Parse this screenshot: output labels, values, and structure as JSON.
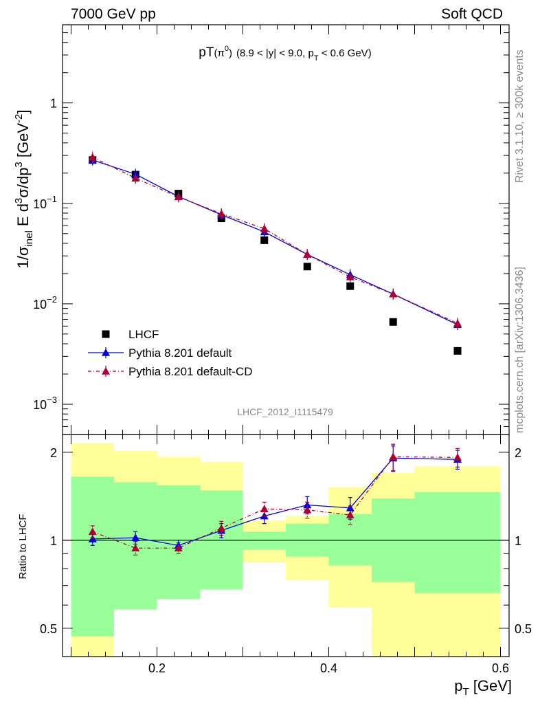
{
  "header": {
    "left": "7000 GeV pp",
    "right": "Soft QCD"
  },
  "side_labels": {
    "rivet": "Rivet 3.1.10, ≥ 300k events",
    "site": "mcplots.cern.ch [arXiv:1306.3436]"
  },
  "chart_data": [
    {
      "type": "scatter",
      "title_main": "pT",
      "title_sup": "(π",
      "title_sup0": "0",
      "title_sup_close": ")",
      "title_range_a": "(8.9 < |y| < 9.0, p",
      "title_range_sub": "T",
      "title_range_b": " < 0.6 GeV)",
      "ylabel": "1/σinel E d3σ/dp3 [GeV-2]",
      "ylabel_parts": {
        "a": "1/σ",
        "sub": "inel",
        "b": " E d",
        "sup3": "3",
        "c": "σ/dp",
        "sup3b": "3",
        "d": " [GeV",
        "sup": "-2",
        "e": "]"
      },
      "y_scale": "log",
      "ylim": [
        0.0005,
        6.0
      ],
      "xlim": [
        0.09,
        0.61
      ],
      "y_ticks": [
        {
          "value": 1,
          "label": "1",
          "exp": ""
        },
        {
          "value": 0.1,
          "label": "10",
          "exp": "−1"
        },
        {
          "value": 0.01,
          "label": "10",
          "exp": "−2"
        },
        {
          "value": 0.001,
          "label": "10",
          "exp": "−3"
        }
      ],
      "watermark": "LHCF_2012_I1115479",
      "legend_position": "bottom-left",
      "series": [
        {
          "name": "LHCF",
          "color": "#000000",
          "marker": "square",
          "x": [
            0.125,
            0.175,
            0.225,
            0.275,
            0.325,
            0.375,
            0.425,
            0.475,
            0.55
          ],
          "y": [
            0.27,
            0.193,
            0.125,
            0.071,
            0.043,
            0.0235,
            0.015,
            0.0066,
            0.0034
          ]
        },
        {
          "name": "Pythia 8.201 default",
          "color": "#0000dd",
          "marker": "triangle",
          "line": "solid",
          "x": [
            0.125,
            0.175,
            0.225,
            0.275,
            0.325,
            0.375,
            0.425,
            0.475,
            0.55
          ],
          "y": [
            0.27,
            0.195,
            0.117,
            0.077,
            0.052,
            0.031,
            0.0195,
            0.0125,
            0.0062
          ]
        },
        {
          "name": "Pythia 8.201 default-CD",
          "color": "#b00033",
          "marker": "triangle",
          "line": "dashdot",
          "x": [
            0.125,
            0.175,
            0.225,
            0.275,
            0.325,
            0.375,
            0.425,
            0.475,
            0.55
          ],
          "y": [
            0.288,
            0.178,
            0.116,
            0.079,
            0.056,
            0.031,
            0.0185,
            0.0125,
            0.0064
          ]
        }
      ]
    },
    {
      "type": "scatter",
      "ylabel": "Ratio to LHCF",
      "xlabel_main": "p",
      "xlabel_sub": "T",
      "xlabel_unit": " [GeV]",
      "y_scale": "log",
      "ylim": [
        0.4,
        2.3
      ],
      "xlim": [
        0.09,
        0.61
      ],
      "x_ticks": [
        {
          "value": 0.2,
          "label": "0.2"
        },
        {
          "value": 0.4,
          "label": "0.4"
        },
        {
          "value": 0.6,
          "label": "0.6"
        }
      ],
      "y_ticks": [
        {
          "value": 2,
          "label": "2"
        },
        {
          "value": 1,
          "label": "1"
        },
        {
          "value": 0.5,
          "label": "0.5"
        }
      ],
      "reference_line": 1,
      "bands": [
        {
          "x0": 0.1,
          "x1": 0.15,
          "yellow": [
            0.4,
            2.15
          ],
          "green": [
            0.47,
            1.65
          ]
        },
        {
          "x0": 0.15,
          "x1": 0.2,
          "yellow": [
            0.58,
            2.02
          ],
          "green": [
            0.58,
            1.58
          ]
        },
        {
          "x0": 0.2,
          "x1": 0.25,
          "yellow": [
            0.63,
            1.93
          ],
          "green": [
            0.63,
            1.54
          ]
        },
        {
          "x0": 0.25,
          "x1": 0.3,
          "yellow": [
            0.68,
            1.85
          ],
          "green": [
            0.68,
            1.48
          ]
        },
        {
          "x0": 0.3,
          "x1": 0.35,
          "yellow": [
            0.84,
            1.17
          ],
          "green": [
            0.93,
            1.07
          ]
        },
        {
          "x0": 0.35,
          "x1": 0.4,
          "yellow": [
            0.73,
            1.21
          ],
          "green": [
            0.88,
            1.14
          ]
        },
        {
          "x0": 0.4,
          "x1": 0.45,
          "yellow": [
            0.59,
            1.52
          ],
          "green": [
            0.82,
            1.23
          ]
        },
        {
          "x0": 0.45,
          "x1": 0.5,
          "yellow": [
            0.4,
            1.7
          ],
          "green": [
            0.72,
            1.39
          ]
        },
        {
          "x0": 0.5,
          "x1": 0.6,
          "yellow": [
            0.4,
            1.79
          ],
          "green": [
            0.66,
            1.46
          ]
        }
      ],
      "series": [
        {
          "name": "Pythia 8.201 default",
          "color": "#0000dd",
          "x": [
            0.125,
            0.175,
            0.225,
            0.275,
            0.325,
            0.375,
            0.425,
            0.475,
            0.55
          ],
          "y": [
            1.01,
            1.02,
            0.96,
            1.08,
            1.21,
            1.32,
            1.29,
            1.91,
            1.89
          ],
          "err": [
            0.05,
            0.05,
            0.04,
            0.06,
            0.07,
            0.09,
            0.11,
            0.19,
            0.14
          ]
        },
        {
          "name": "Pythia 8.201 default-CD",
          "color": "#b00033",
          "x": [
            0.125,
            0.175,
            0.225,
            0.275,
            0.325,
            0.375,
            0.425,
            0.475,
            0.55
          ],
          "y": [
            1.07,
            0.94,
            0.94,
            1.1,
            1.28,
            1.27,
            1.22,
            1.93,
            1.92
          ],
          "err": [
            0.05,
            0.05,
            0.04,
            0.06,
            0.07,
            0.08,
            0.09,
            0.2,
            0.14
          ]
        }
      ]
    }
  ]
}
